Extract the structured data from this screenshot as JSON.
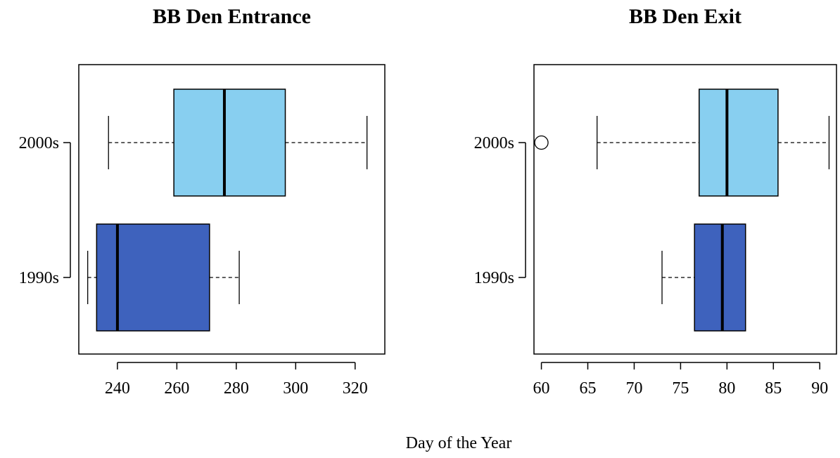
{
  "xlabel": "Day of the Year",
  "colors": {
    "1990s": "#3E62BD",
    "2000s": "#88CFF0",
    "stroke": "#000000"
  },
  "chart_data": [
    {
      "type": "box",
      "title": "BB Den Entrance",
      "categories": [
        "2000s",
        "1990s"
      ],
      "xlim": [
        227,
        330
      ],
      "xticks": [
        240,
        260,
        280,
        300,
        320
      ],
      "grid": false,
      "series": [
        {
          "name": "2000s",
          "whisker_low": 237,
          "q1": 259,
          "median": 276,
          "q3": 296.5,
          "whisker_high": 324,
          "outliers": []
        },
        {
          "name": "1990s",
          "whisker_low": 230,
          "q1": 233,
          "median": 240,
          "q3": 271,
          "whisker_high": 281,
          "outliers": []
        }
      ]
    },
    {
      "type": "box",
      "title": "BB Den Exit",
      "categories": [
        "2000s",
        "1990s"
      ],
      "xlim": [
        59.2,
        91.8
      ],
      "xticks": [
        60,
        65,
        70,
        75,
        80,
        85,
        90
      ],
      "grid": false,
      "series": [
        {
          "name": "2000s",
          "whisker_low": 66,
          "q1": 77,
          "median": 80,
          "q3": 85.5,
          "whisker_high": 91,
          "outliers": [
            60
          ]
        },
        {
          "name": "1990s",
          "whisker_low": 73,
          "q1": 76.5,
          "median": 79.5,
          "q3": 82,
          "whisker_high": 82,
          "outliers": []
        }
      ]
    }
  ]
}
